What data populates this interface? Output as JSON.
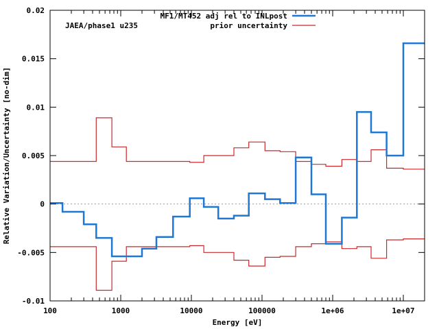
{
  "chart_data": {
    "type": "line",
    "annotation": "JAEA/phase1 u235",
    "xlabel": "Energy [eV]",
    "ylabel": "Relative Variation/Uncertainty [no-dim]",
    "x_scale": "log",
    "xlim": [
      100,
      20000000
    ],
    "ylim": [
      -0.01,
      0.02
    ],
    "grid": false,
    "legend_position": "top-right",
    "x_ticks": [
      {
        "value": 100,
        "label": "100"
      },
      {
        "value": 1000,
        "label": "1000"
      },
      {
        "value": 10000,
        "label": "10000"
      },
      {
        "value": 100000,
        "label": "100000"
      },
      {
        "value": 1000000,
        "label": "1e+06"
      },
      {
        "value": 10000000,
        "label": "1e+07"
      }
    ],
    "y_ticks": [
      {
        "value": -0.01,
        "label": "-0.01"
      },
      {
        "value": -0.005,
        "label": "-0.005"
      },
      {
        "value": 0,
        "label": "0"
      },
      {
        "value": 0.005,
        "label": "0.005"
      },
      {
        "value": 0.01,
        "label": "0.01"
      },
      {
        "value": 0.015,
        "label": "0.015"
      },
      {
        "value": 0.02,
        "label": "0.02"
      }
    ],
    "zero_line": {
      "value": 0,
      "style": "dotted",
      "color": "#999999"
    },
    "series": [
      {
        "name": "MF1/MT452 adj rel to INLpost",
        "color": "#1f77d4",
        "width": 2.5,
        "style": "step",
        "edges": [
          100,
          150,
          300,
          450,
          750,
          1200,
          2000,
          3200,
          5500,
          9500,
          15000,
          24000,
          40000,
          65000,
          110000,
          180000,
          300000,
          500000,
          800000,
          1350000,
          2200000,
          3500000,
          5800000,
          10000000,
          20000000
        ],
        "values": [
          0.0001,
          -0.0008,
          -0.0021,
          -0.0035,
          -0.0054,
          -0.0054,
          -0.0046,
          -0.0034,
          -0.0013,
          0.0006,
          -0.0003,
          -0.0015,
          -0.0012,
          0.0011,
          0.0005,
          0.0001,
          0.0048,
          0.001,
          -0.0041,
          -0.0014,
          0.0095,
          0.0074,
          0.005,
          0.0166
        ]
      },
      {
        "name": "prior uncertainty",
        "color": "#c8282a",
        "width": 1.2,
        "style": "step",
        "mirror": true,
        "edges": [
          100,
          450,
          750,
          1200,
          2000,
          3200,
          5500,
          9500,
          15000,
          24000,
          40000,
          65000,
          110000,
          180000,
          300000,
          500000,
          800000,
          1350000,
          2200000,
          3500000,
          5800000,
          10000000,
          20000000
        ],
        "values": [
          0.0044,
          0.0089,
          0.0059,
          0.0044,
          0.0044,
          0.0044,
          0.0044,
          0.0043,
          0.005,
          0.005,
          0.0058,
          0.0064,
          0.0055,
          0.0054,
          0.0044,
          0.0041,
          0.0039,
          0.0046,
          0.0044,
          0.0056,
          0.0037,
          0.0036
        ]
      }
    ]
  }
}
